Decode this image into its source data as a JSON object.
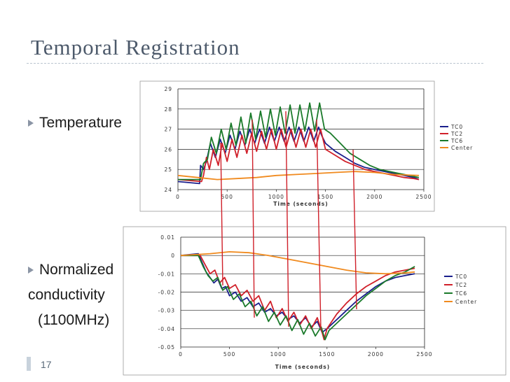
{
  "slide": {
    "title": "Temporal Registration",
    "bullets": [
      {
        "lines": [
          "Temperature"
        ]
      },
      {
        "lines": [
          "Normalized",
          "conductivity",
          "(1100MHz)"
        ]
      }
    ],
    "page_number": "17"
  },
  "chart_data": [
    {
      "type": "line",
      "xlabel": "Time (seconds)",
      "ylabel": "",
      "xlim": [
        0,
        2500
      ],
      "ylim": [
        24,
        29
      ],
      "xticks": [
        0,
        500,
        1000,
        1500,
        2000,
        2500
      ],
      "yticks": [
        24,
        25,
        26,
        27,
        28,
        29
      ],
      "ytick_labels": [
        "24",
        "25",
        "26",
        "27",
        "28",
        "29"
      ],
      "legend_position": "right",
      "series": [
        {
          "name": "TC0",
          "color": "#1a1f8c",
          "x": [
            0,
            220,
            230,
            260,
            290,
            330,
            380,
            430,
            480,
            530,
            580,
            630,
            680,
            730,
            780,
            830,
            880,
            930,
            980,
            1030,
            1080,
            1130,
            1180,
            1230,
            1280,
            1330,
            1380,
            1430,
            1460,
            1500,
            1600,
            1700,
            1800,
            1900,
            2000,
            2100,
            2200,
            2300,
            2400,
            2450
          ],
          "y": [
            24.4,
            24.3,
            25.2,
            25.0,
            25.4,
            26.3,
            25.6,
            26.5,
            25.8,
            26.7,
            26.0,
            26.9,
            26.2,
            27.0,
            26.3,
            27.0,
            26.3,
            27.1,
            26.4,
            27.1,
            26.4,
            27.1,
            26.4,
            27.1,
            26.4,
            27.1,
            26.4,
            27.1,
            26.7,
            26.3,
            25.9,
            25.6,
            25.3,
            25.1,
            25.0,
            24.9,
            24.8,
            24.7,
            24.6,
            24.5
          ]
        },
        {
          "name": "TC2",
          "color": "#d0202a",
          "x": [
            0,
            240,
            260,
            290,
            320,
            360,
            410,
            450,
            500,
            550,
            600,
            650,
            700,
            750,
            800,
            850,
            900,
            950,
            1000,
            1050,
            1100,
            1150,
            1200,
            1250,
            1300,
            1350,
            1400,
            1450,
            1500,
            1600,
            1700,
            1800,
            1900,
            2000,
            2100,
            2200,
            2300,
            2400,
            2450
          ],
          "y": [
            24.5,
            24.4,
            24.7,
            25.6,
            25.0,
            26.0,
            25.2,
            26.3,
            25.4,
            26.5,
            25.6,
            26.7,
            25.8,
            26.8,
            25.9,
            26.9,
            26.0,
            27.0,
            26.0,
            27.0,
            26.1,
            27.0,
            26.1,
            27.0,
            26.1,
            27.0,
            26.1,
            27.0,
            26.0,
            25.7,
            25.4,
            25.2,
            25.0,
            24.9,
            24.8,
            24.7,
            24.6,
            24.55,
            24.5
          ]
        },
        {
          "name": "TC6",
          "color": "#1a7a2a",
          "x": [
            0,
            230,
            260,
            300,
            340,
            390,
            440,
            490,
            540,
            590,
            640,
            690,
            740,
            790,
            840,
            890,
            940,
            990,
            1040,
            1090,
            1140,
            1190,
            1240,
            1290,
            1340,
            1390,
            1440,
            1490,
            1550,
            1650,
            1750,
            1850,
            1950,
            2050,
            2150,
            2250,
            2350,
            2450
          ],
          "y": [
            24.5,
            24.5,
            25.3,
            25.5,
            26.6,
            25.8,
            27.0,
            26.0,
            27.3,
            26.2,
            27.6,
            26.3,
            27.8,
            26.5,
            27.9,
            26.6,
            28.0,
            26.7,
            28.1,
            26.8,
            28.2,
            26.8,
            28.2,
            26.9,
            28.3,
            26.9,
            28.3,
            27.0,
            26.8,
            26.3,
            25.8,
            25.5,
            25.2,
            25.0,
            24.9,
            24.8,
            24.7,
            24.6
          ]
        },
        {
          "name": "Center",
          "color": "#f08a1e",
          "x": [
            0,
            200,
            400,
            600,
            800,
            1000,
            1200,
            1400,
            1600,
            1800,
            2000,
            2200,
            2450
          ],
          "y": [
            24.7,
            24.6,
            24.5,
            24.55,
            24.6,
            24.7,
            24.75,
            24.8,
            24.85,
            24.9,
            24.85,
            24.75,
            24.7
          ]
        }
      ]
    },
    {
      "type": "line",
      "xlabel": "Time (seconds)",
      "ylabel": "",
      "xlim": [
        0,
        2500
      ],
      "ylim": [
        -0.05,
        0.01
      ],
      "xticks": [
        0,
        500,
        1000,
        1500,
        2000,
        2500
      ],
      "yticks": [
        -0.05,
        -0.04,
        -0.03,
        -0.02,
        -0.01,
        0,
        0.01
      ],
      "ytick_labels": [
        "-0.05",
        "-0.04",
        "-0.03",
        "-0.02",
        "-0.01",
        "0",
        "0.01"
      ],
      "legend_position": "right",
      "series": [
        {
          "name": "TC0",
          "color": "#1a1f8c",
          "x": [
            0,
            180,
            220,
            260,
            300,
            340,
            380,
            420,
            460,
            500,
            560,
            620,
            680,
            740,
            800,
            860,
            920,
            980,
            1040,
            1100,
            1160,
            1220,
            1280,
            1340,
            1400,
            1450,
            1500,
            1600,
            1700,
            1800,
            1900,
            2000,
            2100,
            2200,
            2300,
            2400
          ],
          "y": [
            0,
            0.001,
            -0.004,
            -0.009,
            -0.012,
            -0.015,
            -0.013,
            -0.018,
            -0.017,
            -0.022,
            -0.02,
            -0.025,
            -0.023,
            -0.028,
            -0.026,
            -0.031,
            -0.029,
            -0.033,
            -0.031,
            -0.035,
            -0.033,
            -0.037,
            -0.034,
            -0.039,
            -0.036,
            -0.042,
            -0.04,
            -0.035,
            -0.03,
            -0.025,
            -0.021,
            -0.017,
            -0.014,
            -0.012,
            -0.011,
            -0.01
          ]
        },
        {
          "name": "TC2",
          "color": "#d0202a",
          "x": [
            0,
            200,
            250,
            300,
            350,
            400,
            450,
            500,
            560,
            620,
            680,
            740,
            800,
            860,
            920,
            980,
            1040,
            1100,
            1160,
            1220,
            1280,
            1340,
            1400,
            1450,
            1470,
            1500,
            1600,
            1700,
            1800,
            1900,
            2000,
            2100,
            2200,
            2300,
            2400
          ],
          "y": [
            0,
            0,
            -0.005,
            -0.01,
            -0.008,
            -0.015,
            -0.012,
            -0.018,
            -0.016,
            -0.022,
            -0.019,
            -0.025,
            -0.022,
            -0.03,
            -0.025,
            -0.034,
            -0.029,
            -0.036,
            -0.031,
            -0.038,
            -0.033,
            -0.04,
            -0.034,
            -0.042,
            -0.046,
            -0.04,
            -0.032,
            -0.026,
            -0.021,
            -0.017,
            -0.014,
            -0.011,
            -0.009,
            -0.008,
            -0.007
          ]
        },
        {
          "name": "TC6",
          "color": "#1a7a2a",
          "x": [
            0,
            180,
            230,
            280,
            330,
            380,
            430,
            480,
            540,
            600,
            660,
            720,
            780,
            840,
            900,
            960,
            1020,
            1080,
            1140,
            1200,
            1260,
            1320,
            1380,
            1440,
            1480,
            1520,
            1600,
            1700,
            1800,
            1900,
            2000,
            2100,
            2200,
            2300,
            2400
          ],
          "y": [
            0,
            0,
            -0.006,
            -0.011,
            -0.014,
            -0.012,
            -0.019,
            -0.017,
            -0.024,
            -0.021,
            -0.028,
            -0.025,
            -0.033,
            -0.028,
            -0.036,
            -0.031,
            -0.038,
            -0.033,
            -0.041,
            -0.035,
            -0.043,
            -0.037,
            -0.044,
            -0.039,
            -0.046,
            -0.041,
            -0.037,
            -0.032,
            -0.027,
            -0.022,
            -0.018,
            -0.014,
            -0.011,
            -0.009,
            -0.006
          ]
        },
        {
          "name": "Center",
          "color": "#f08a1e",
          "x": [
            0,
            300,
            500,
            700,
            900,
            1100,
            1300,
            1500,
            1700,
            1900,
            2100,
            2300,
            2400
          ],
          "y": [
            0,
            0.001,
            0.002,
            0.0015,
            0,
            -0.002,
            -0.004,
            -0.006,
            -0.008,
            -0.0095,
            -0.01,
            -0.0095,
            -0.009
          ]
        }
      ]
    }
  ]
}
